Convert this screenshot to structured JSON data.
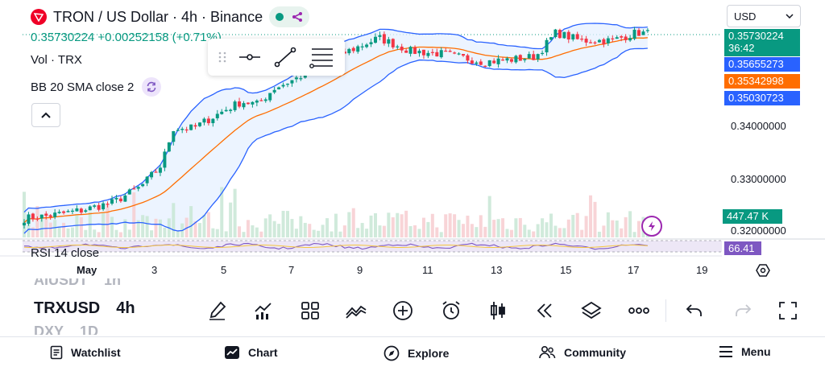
{
  "header": {
    "symbol_title": "TRON / US Dollar · 4h · Binance",
    "logo_icon": "tron-logo-icon",
    "price_line": "0.35730224 +0.00252158 (+0.71%)",
    "volume_legend": "Vol · TRX",
    "bb_legend": "BB 20 SMA close 2"
  },
  "scale": {
    "currency": "USD",
    "last_price": "0.35730224",
    "countdown": "36:42",
    "bb_upper": "0.35655273",
    "bb_basis": "0.35342998",
    "bb_lower": "0.35030723",
    "tick_1": "0.34000000",
    "tick_2": "0.33000000",
    "tick_3": "0.32000000",
    "volume_value": "447.47 K",
    "rsi_value": "66.41"
  },
  "rsi": {
    "legend": "RSI 14 close"
  },
  "time_axis": {
    "labels": [
      "May",
      "3",
      "5",
      "7",
      "9",
      "11",
      "13",
      "15",
      "17",
      "19"
    ]
  },
  "bottom_toolbar": {
    "symbols": [
      {
        "sym": "AIUSDT",
        "tf": "1h"
      },
      {
        "sym": "TRXUSD",
        "tf": "4h"
      },
      {
        "sym": "DXY",
        "tf": "1D"
      }
    ],
    "icons": [
      "brush-icon",
      "indicators-icon",
      "layouts-icon",
      "compare-icon",
      "add-icon",
      "alert-icon",
      "candles-icon",
      "replay-icon",
      "layers-icon",
      "more-icon",
      "undo-icon",
      "redo-icon",
      "fullscreen-icon"
    ]
  },
  "nav": {
    "watchlist": "Watchlist",
    "chart": "Chart",
    "explore": "Explore",
    "community": "Community",
    "menu": "Menu"
  },
  "colors": {
    "up": "#089981",
    "down": "#f23645",
    "bb_band": "#2962ff",
    "bb_basis": "#ff6d00",
    "bb_fill": "#e6f0ff",
    "rsi": "#7e57c2",
    "rsi_fill": "#ede7f6"
  },
  "chart_data": {
    "type": "candlestick",
    "x": [
      "May 1",
      "May 3",
      "May 5",
      "May 7",
      "May 9",
      "May 11",
      "May 13",
      "May 15",
      "May 17",
      "May 19"
    ],
    "y_ticks": [
      0.32,
      0.33,
      0.34
    ],
    "last_close": 0.35730224,
    "bollinger": {
      "upper": 0.35655273,
      "basis": 0.35342998,
      "lower": 0.35030723
    },
    "volume_last": "447.47 K",
    "rsi_last": 66.41
  }
}
